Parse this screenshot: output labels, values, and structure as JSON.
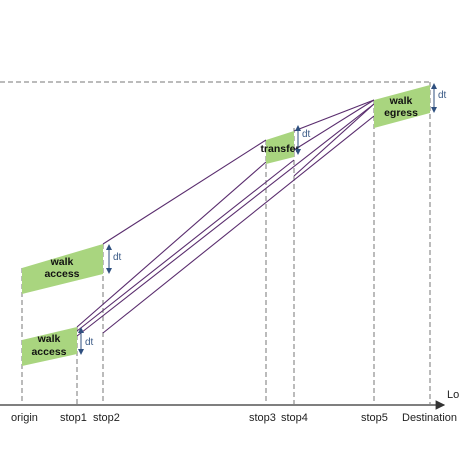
{
  "colors": {
    "box_fill": "#a9d57f",
    "path_line": "#5a2d6e",
    "axis": "#333333",
    "dashed": "#777777",
    "dt_arrow": "#2f4f7f"
  },
  "axis": {
    "end_label": "Lo",
    "stops": [
      {
        "id": "origin",
        "label": "origin"
      },
      {
        "id": "stop1",
        "label": "stop1"
      },
      {
        "id": "stop2",
        "label": "stop2"
      },
      {
        "id": "stop3",
        "label": "stop3"
      },
      {
        "id": "stop4",
        "label": "stop4"
      },
      {
        "id": "stop5",
        "label": "stop5"
      },
      {
        "id": "destination",
        "label": "Destination"
      }
    ]
  },
  "boxes": {
    "walk_access_upper": {
      "line1": "walk",
      "line2": "access"
    },
    "walk_access_lower": {
      "line1": "walk",
      "line2": "access"
    },
    "transfer": {
      "line1": "transfer"
    },
    "walk_egress": {
      "line1": "walk",
      "line2": "egress"
    }
  },
  "dt_labels": {
    "access_upper": "dt",
    "access_lower": "dt",
    "transfer": "dt",
    "egress": "dt"
  }
}
